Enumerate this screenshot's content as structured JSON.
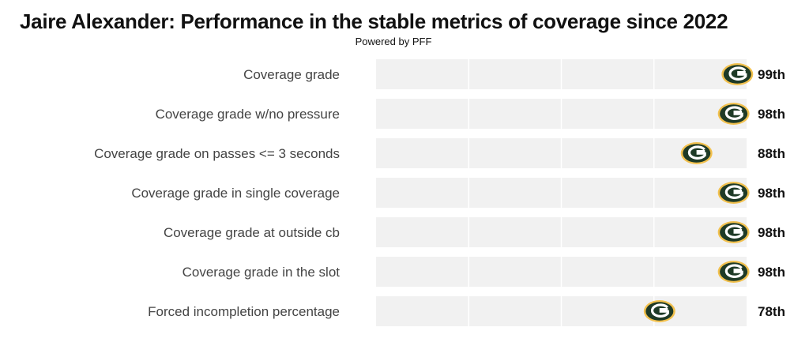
{
  "title": "Jaire Alexander: Performance in the stable metrics of coverage since 2022",
  "subtitle": "Powered by PFF",
  "colors": {
    "track": "#f1f1f1",
    "grid": "#ffffff",
    "logo_green": "#1e3a26",
    "logo_gold": "#f2c14e",
    "label": "#444444",
    "value_label": "#111111"
  },
  "marker_icon": "packers-g-logo-icon",
  "chart_data": {
    "type": "scatter",
    "title": "Jaire Alexander: Performance in the stable metrics of coverage since 2022",
    "subtitle": "Powered by PFF",
    "categories": [
      "Coverage grade",
      "Coverage grade w/no pressure",
      "Coverage grade on passes <= 3 seconds",
      "Coverage grade in single coverage",
      "Coverage grade at outside cb",
      "Coverage grade in the slot",
      "Forced incompletion percentage"
    ],
    "values": [
      99,
      98,
      88,
      98,
      98,
      98,
      78
    ],
    "value_labels": [
      "99th",
      "98th",
      "88th",
      "98th",
      "98th",
      "98th",
      "78th"
    ],
    "xlim": [
      0,
      100
    ],
    "xlabel": "",
    "ylabel": "",
    "grid": true
  }
}
